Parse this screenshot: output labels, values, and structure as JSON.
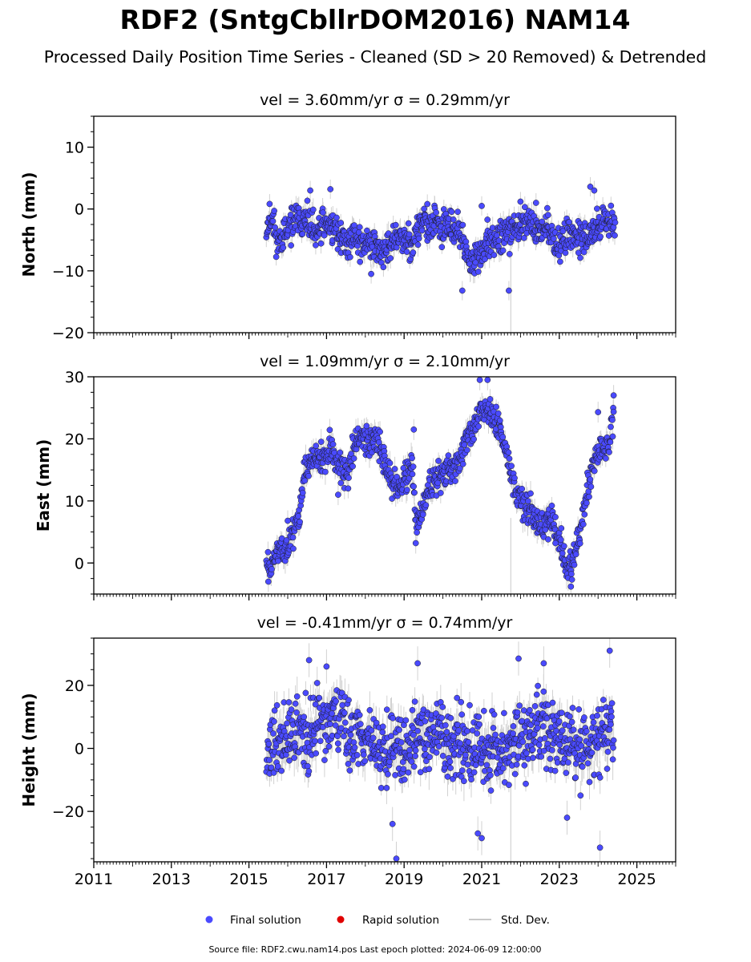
{
  "title": "RDF2 (SntgCbllrDOM2016) NAM14",
  "subtitle": "Processed Daily Position Time Series - Cleaned (SD > 20 Removed) & Detrended",
  "colors": {
    "final": "#4a4aff",
    "rapid": "#e00000",
    "stddev": "#c8c8c8",
    "edge": "#1a1a1a"
  },
  "legend": {
    "final": "Final solution",
    "rapid": "Rapid solution",
    "stddev": "Std. Dev."
  },
  "footer": "Source file: RDF2.cwu.nam14.pos  Last epoch plotted: 2024-06-09 12:00:00",
  "chart_data": [
    {
      "type": "scatter",
      "name": "North",
      "title": "vel = 3.60mm/yr   σ = 0.29mm/yr",
      "ylabel": "North (mm)",
      "xlim": [
        2011,
        2026
      ],
      "ylim": [
        -20,
        15
      ],
      "yticks": [
        10,
        0,
        -10,
        -20
      ],
      "xticks": [
        2011,
        2013,
        2015,
        2017,
        2019,
        2021,
        2023,
        2025
      ],
      "x": [
        2015.45,
        2015.6,
        2015.75,
        2015.9,
        2016.05,
        2016.25,
        2016.45,
        2016.6,
        2016.75,
        2016.9,
        2017.05,
        2017.2,
        2017.35,
        2017.5,
        2017.7,
        2017.9,
        2018.1,
        2018.3,
        2018.5,
        2018.7,
        2018.85,
        2019.0,
        2019.2,
        2019.4,
        2019.6,
        2019.8,
        2020.0,
        2020.2,
        2020.4,
        2020.55,
        2020.7,
        2020.85,
        2021.0,
        2021.15,
        2021.3,
        2021.5,
        2021.7,
        2021.9,
        2022.1,
        2022.3,
        2022.5,
        2022.7,
        2022.9,
        2023.1,
        2023.3,
        2023.5,
        2023.7,
        2023.9,
        2024.1,
        2024.3,
        2024.44
      ],
      "values": [
        -2.5,
        -1.5,
        -5.5,
        -4,
        -3,
        -1.5,
        -2,
        -3,
        -4.5,
        -2,
        -2.5,
        -3,
        -4.5,
        -6,
        -4,
        -6,
        -5,
        -6.5,
        -7,
        -5.5,
        -4,
        -4.5,
        -6,
        -2,
        -3,
        -1.5,
        -3.5,
        -2.5,
        -3.5,
        -6,
        -9,
        -8,
        -7,
        -5.5,
        -5,
        -4.5,
        -4.5,
        -2.5,
        -2,
        -2.5,
        -3.5,
        -2.5,
        -6,
        -5,
        -4,
        -4.5,
        -6,
        -3.5,
        -2.5,
        -1,
        -3
      ],
      "extra_points": [
        [
          2016.58,
          3
        ],
        [
          2017.1,
          3.2
        ],
        [
          2018.15,
          -10.5
        ],
        [
          2019.6,
          0.8
        ],
        [
          2020.5,
          -13.2
        ],
        [
          2021.0,
          0.5
        ],
        [
          2021.7,
          -13.2
        ],
        [
          2022.0,
          1.2
        ],
        [
          2022.4,
          1.0
        ],
        [
          2023.8,
          3.6
        ],
        [
          2023.9,
          3.0
        ]
      ]
    },
    {
      "type": "scatter",
      "name": "East",
      "title": "vel = 1.09mm/yr   σ = 2.10mm/yr",
      "ylabel": "East (mm)",
      "xlim": [
        2011,
        2026
      ],
      "ylim": [
        -5,
        30
      ],
      "yticks": [
        30,
        20,
        10,
        0
      ],
      "xticks": [
        2011,
        2013,
        2015,
        2017,
        2019,
        2021,
        2023,
        2025
      ],
      "x": [
        2015.45,
        2015.55,
        2015.7,
        2015.85,
        2016.0,
        2016.15,
        2016.3,
        2016.4,
        2016.5,
        2016.65,
        2016.8,
        2016.95,
        2017.1,
        2017.25,
        2017.4,
        2017.55,
        2017.7,
        2017.85,
        2018.0,
        2018.15,
        2018.3,
        2018.45,
        2018.6,
        2018.75,
        2018.9,
        2019.05,
        2019.2,
        2019.3,
        2019.45,
        2019.6,
        2019.75,
        2019.9,
        2020.05,
        2020.2,
        2020.35,
        2020.5,
        2020.65,
        2020.8,
        2020.95,
        2021.1,
        2021.25,
        2021.4,
        2021.55,
        2021.7,
        2021.85,
        2022.0,
        2022.15,
        2022.3,
        2022.45,
        2022.6,
        2022.75,
        2022.9,
        2023.05,
        2023.2,
        2023.35,
        2023.5,
        2023.65,
        2023.8,
        2023.95,
        2024.1,
        2024.25,
        2024.4
      ],
      "values": [
        0.5,
        -0.5,
        1.5,
        2.5,
        3,
        5,
        8,
        13.5,
        15.5,
        16.5,
        17,
        16.5,
        19,
        16,
        15,
        14,
        18.5,
        20.5,
        20,
        19.5,
        21,
        17,
        14.5,
        12,
        11.5,
        14,
        16,
        6,
        8,
        11,
        13.5,
        14.5,
        14,
        15,
        15.5,
        18,
        20.5,
        22.5,
        24,
        25.5,
        23.5,
        23,
        20,
        16,
        12,
        10,
        8.5,
        8,
        6.5,
        5.5,
        7,
        5,
        3,
        -1.5,
        0.5,
        4,
        9,
        14,
        17,
        18.5,
        19,
        23
      ],
      "extra_points": [
        [
          2015.5,
          -3
        ],
        [
          2017.3,
          11
        ],
        [
          2019.25,
          21.5
        ],
        [
          2020.95,
          29.5
        ],
        [
          2021.15,
          29.5
        ],
        [
          2022.9,
          3.2
        ],
        [
          2023.3,
          -3.8
        ],
        [
          2024.0,
          24.3
        ],
        [
          2024.4,
          27
        ],
        [
          2016.0,
          6.8
        ],
        [
          2019.3,
          3.2
        ]
      ]
    },
    {
      "type": "scatter",
      "name": "Height",
      "title": "vel = -0.41mm/yr   σ = 0.74mm/yr",
      "ylabel": "Height (mm)",
      "xlim": [
        2011,
        2026
      ],
      "ylim": [
        -36,
        35
      ],
      "yticks": [
        20,
        0,
        -20
      ],
      "xticks": [
        2011,
        2013,
        2015,
        2017,
        2019,
        2021,
        2023,
        2025
      ],
      "xticklabels": [
        "2011",
        "2013",
        "2015",
        "2017",
        "2019",
        "2021",
        "2023",
        "2025"
      ],
      "x": [
        2015.45,
        2015.7,
        2016.0,
        2016.3,
        2016.6,
        2016.9,
        2017.2,
        2017.5,
        2017.8,
        2018.1,
        2018.4,
        2018.7,
        2019.0,
        2019.3,
        2019.6,
        2019.9,
        2020.2,
        2020.5,
        2020.8,
        2021.1,
        2021.4,
        2021.7,
        2022.0,
        2022.3,
        2022.6,
        2022.9,
        2023.2,
        2023.5,
        2023.8,
        2024.1,
        2024.4
      ],
      "values": [
        0,
        2,
        3,
        5,
        5,
        8,
        10,
        6,
        4,
        3,
        2,
        0,
        -2,
        4,
        6,
        5,
        3,
        1,
        2,
        -1,
        0,
        1,
        3,
        5,
        6,
        4,
        2,
        0,
        2,
        4,
        6
      ],
      "extra_points": [
        [
          2016.55,
          28
        ],
        [
          2017.0,
          26
        ],
        [
          2018.8,
          -35
        ],
        [
          2019.35,
          27
        ],
        [
          2021.95,
          28.5
        ],
        [
          2021.0,
          -28.5
        ],
        [
          2024.05,
          -31.5
        ],
        [
          2024.3,
          31
        ],
        [
          2023.2,
          -22
        ],
        [
          2022.6,
          27
        ],
        [
          2020.9,
          -27
        ],
        [
          2018.7,
          -24
        ]
      ]
    }
  ]
}
